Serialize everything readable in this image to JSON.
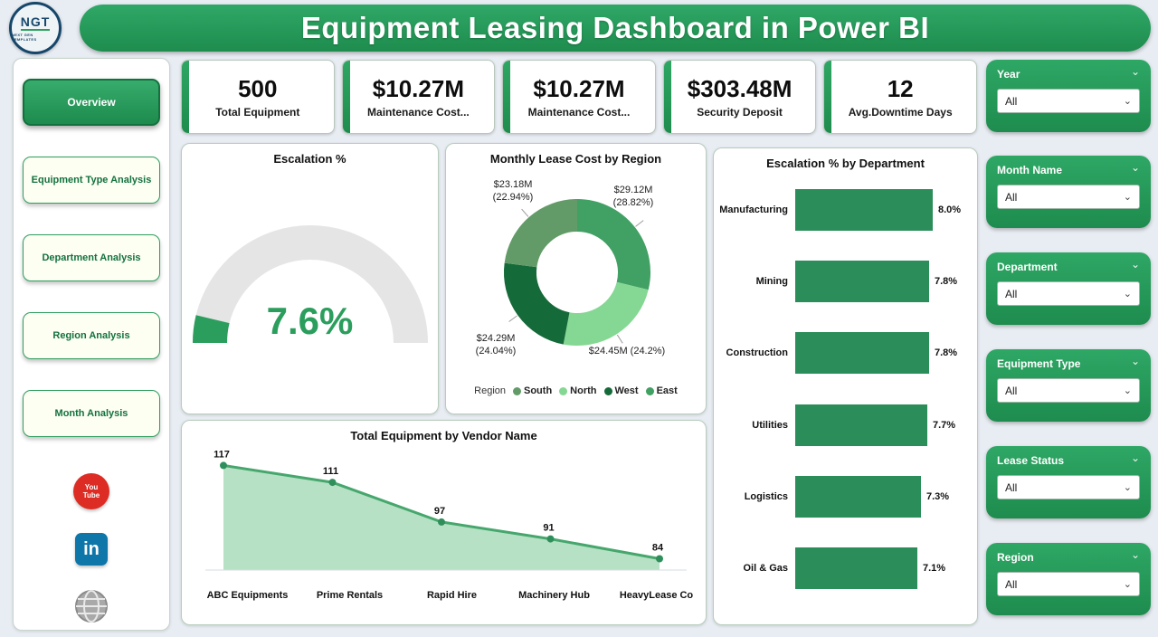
{
  "header": {
    "title": "Equipment Leasing Dashboard in Power BI",
    "logo_text": "NGT",
    "logo_subtext": "NEXT GEN TEMPLATES"
  },
  "nav": {
    "items": [
      {
        "label": "Overview",
        "active": true
      },
      {
        "label": "Equipment Type Analysis",
        "active": false
      },
      {
        "label": "Department Analysis",
        "active": false
      },
      {
        "label": "Region Analysis",
        "active": false
      },
      {
        "label": "Month Analysis",
        "active": false
      }
    ],
    "social": {
      "youtube_line1": "You",
      "youtube_line2": "Tube",
      "linkedin": "in"
    }
  },
  "kpis": [
    {
      "value": "500",
      "label": "Total Equipment"
    },
    {
      "value": "$10.27M",
      "label": "Maintenance Cost..."
    },
    {
      "value": "$10.27M",
      "label": "Maintenance Cost..."
    },
    {
      "value": "$303.48M",
      "label": "Security Deposit"
    },
    {
      "value": "12",
      "label": "Avg.Downtime Days"
    }
  ],
  "filters": [
    {
      "label": "Year",
      "value": "All"
    },
    {
      "label": "Month Name",
      "value": "All"
    },
    {
      "label": "Department",
      "value": "All"
    },
    {
      "label": "Equipment Type",
      "value": "All"
    },
    {
      "label": "Lease Status",
      "value": "All"
    },
    {
      "label": "Region",
      "value": "All"
    }
  ],
  "chart_data": [
    {
      "type": "gauge",
      "title": "Escalation %",
      "value": 7.6,
      "min": 0,
      "max": 100,
      "display": "7.6%",
      "color": "#2b9e5d",
      "track_color": "#e5e5e5"
    },
    {
      "type": "pie",
      "title": "Monthly Lease Cost by Region",
      "legend_title": "Region",
      "slices": [
        {
          "name": "East",
          "value_m": 29.12,
          "label_lines": [
            "$29.12M",
            "(28.82%)"
          ],
          "color": "#41a063"
        },
        {
          "name": "North",
          "value_m": 24.45,
          "label_lines": [
            "$24.45M (24.2%)"
          ],
          "color": "#85d794"
        },
        {
          "name": "West",
          "value_m": 24.29,
          "label_lines": [
            "$24.29M",
            "(24.04%)"
          ],
          "color": "#156a39"
        },
        {
          "name": "South",
          "value_m": 23.18,
          "label_lines": [
            "$23.18M",
            "(22.94%)"
          ],
          "color": "#629b67"
        }
      ],
      "legend": [
        {
          "label": "South",
          "color": "#629b67"
        },
        {
          "label": "North",
          "color": "#85d794"
        },
        {
          "label": "West",
          "color": "#156a39"
        },
        {
          "label": "East",
          "color": "#41a063"
        }
      ]
    },
    {
      "type": "bar",
      "title": "Escalation % by Department",
      "categories": [
        "Manufacturing",
        "Mining",
        "Construction",
        "Utilities",
        "Logistics",
        "Oil & Gas"
      ],
      "values": [
        8.0,
        7.8,
        7.8,
        7.7,
        7.3,
        7.1
      ],
      "value_labels": [
        "8.0%",
        "7.8%",
        "7.8%",
        "7.7%",
        "7.3%",
        "7.1%"
      ],
      "xmax": 8.0,
      "bar_color": "#2b8d5a"
    },
    {
      "type": "area",
      "title": "Total Equipment by Vendor Name",
      "categories": [
        "ABC Equipments",
        "Prime Rentals",
        "Rapid Hire",
        "Machinery Hub",
        "HeavyLease Co"
      ],
      "values": [
        117,
        111,
        97,
        91,
        84
      ],
      "ylim": [
        80,
        120
      ],
      "line_color": "#46a76d",
      "fill_color": "#b7e1c5",
      "marker_color": "#2f8f5b"
    }
  ]
}
